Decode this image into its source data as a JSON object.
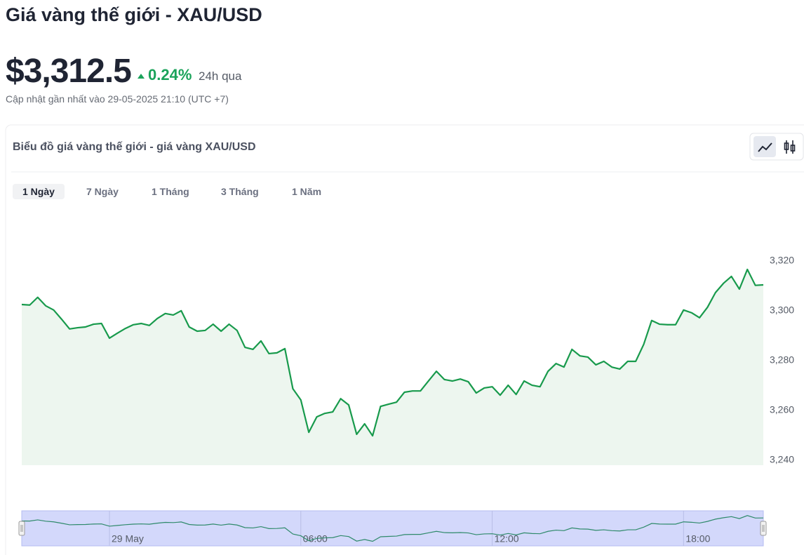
{
  "header": {
    "title": "Giá vàng thế giới - XAU/USD",
    "price": "$3,312.5",
    "change": "0.24%",
    "period": "24h qua",
    "updated": "Cập nhật gần nhất vào 29-05-2025 21:10 (UTC +7)"
  },
  "card": {
    "title": "Biểu đồ giá vàng thế giới - giá vàng XAU/USD",
    "tabs": [
      "1 Ngày",
      "7 Ngày",
      "1 Tháng",
      "3 Tháng",
      "1 Năm"
    ]
  },
  "chart_data": {
    "type": "area",
    "color": "#189a4c",
    "fill": "#edf6ef",
    "x": [
      -2.75,
      -2.5,
      -2.25,
      -2,
      -1.75,
      -1.5,
      -1.25,
      -1,
      -0.75,
      -0.5,
      -0.25,
      0,
      0.25,
      0.5,
      0.75,
      1,
      1.25,
      1.5,
      1.75,
      2,
      2.25,
      2.5,
      2.75,
      3,
      3.25,
      3.5,
      3.75,
      4,
      4.25,
      4.5,
      4.75,
      5,
      5.25,
      5.5,
      5.75,
      6,
      6.25,
      6.5,
      6.75,
      7,
      7.25,
      7.5,
      7.75,
      8,
      8.25,
      8.5,
      8.75,
      9,
      9.25,
      9.5,
      9.75,
      10,
      10.25,
      10.5,
      10.75,
      11,
      11.25,
      11.5,
      11.75,
      12,
      12.25,
      12.5,
      12.75,
      13,
      13.25,
      13.5,
      13.75,
      14,
      14.25,
      14.5,
      14.75,
      15,
      15.25,
      15.5,
      15.75,
      16,
      16.25,
      16.5,
      16.75,
      17,
      17.25,
      17.5,
      17.75,
      18,
      18.25,
      18.5,
      18.75,
      19,
      19.25,
      19.5,
      19.75,
      20,
      20.25,
      20.5
    ],
    "values": [
      3302.5,
      3302.3,
      3305.4,
      3302.0,
      3300.3,
      3296.6,
      3292.7,
      3293.2,
      3293.5,
      3294.6,
      3294.9,
      3289.0,
      3291.0,
      3292.9,
      3294.4,
      3294.9,
      3294.1,
      3296.9,
      3298.9,
      3298.3,
      3300.0,
      3293.5,
      3291.8,
      3292.1,
      3294.6,
      3291.8,
      3294.6,
      3292.1,
      3285.3,
      3284.5,
      3287.9,
      3282.8,
      3283.1,
      3284.8,
      3268.7,
      3264.2,
      3251.2,
      3257.4,
      3258.8,
      3259.4,
      3264.7,
      3262.2,
      3250.4,
      3254.6,
      3249.8,
      3261.6,
      3262.5,
      3263.3,
      3267.3,
      3267.8,
      3267.8,
      3271.8,
      3275.7,
      3272.4,
      3271.8,
      3272.6,
      3271.5,
      3267.0,
      3269.0,
      3269.5,
      3266.1,
      3270.1,
      3266.4,
      3271.8,
      3270.1,
      3269.5,
      3275.7,
      3278.8,
      3277.4,
      3284.5,
      3281.9,
      3281.4,
      3278.3,
      3279.7,
      3277.4,
      3276.6,
      3279.7,
      3279.7,
      3286.5,
      3296.1,
      3294.6,
      3294.4,
      3294.4,
      3300.3,
      3299.2,
      3297.2,
      3301.4,
      3307.3,
      3311.0,
      3313.8,
      3308.7,
      3316.6,
      3310.2,
      3310.4
    ],
    "xlim": [
      -2.75,
      20.5
    ],
    "xticks": [
      {
        "value": 0,
        "label": "29 May"
      },
      {
        "value": 6,
        "label": "06:00"
      },
      {
        "value": 12,
        "label": "12:00"
      },
      {
        "value": 18,
        "label": "18:00"
      }
    ],
    "ylim": [
      3238,
      3338
    ],
    "yticks": [
      {
        "value": 3240,
        "label": "3,240"
      },
      {
        "value": 3260,
        "label": "3,260"
      },
      {
        "value": 3280,
        "label": "3,280"
      },
      {
        "value": 3300,
        "label": "3,300"
      },
      {
        "value": 3320,
        "label": "3,320"
      }
    ]
  }
}
